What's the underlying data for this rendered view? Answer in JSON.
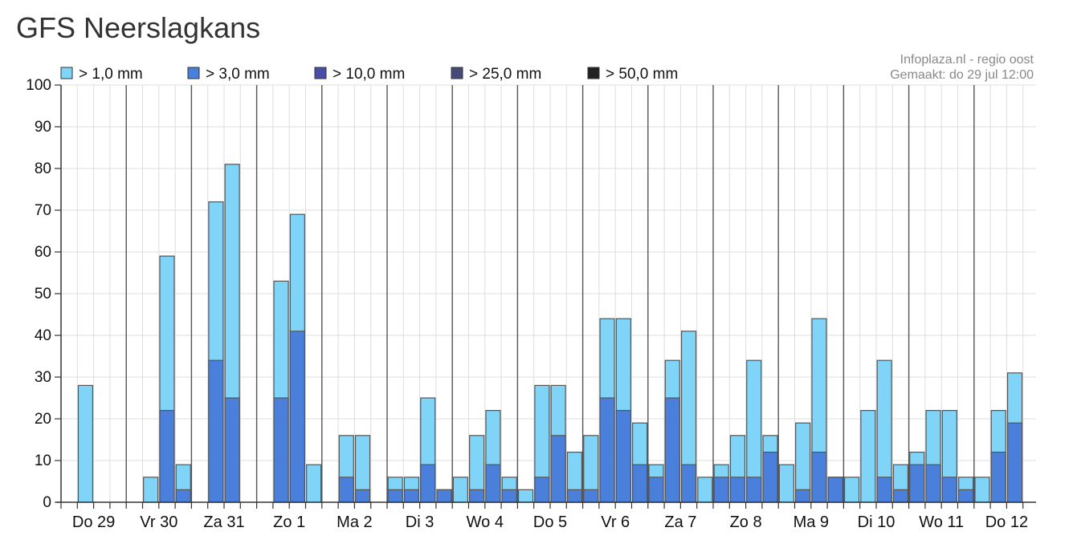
{
  "page": {
    "title": "GFS Neerslagkans"
  },
  "source": {
    "line1": "Infoplaza.nl - regio oost",
    "line2": "Gemaakt: do 29 jul 12:00"
  },
  "chart_data": {
    "type": "bar",
    "stacked": true,
    "ylim": [
      0,
      100
    ],
    "yticks": [
      0,
      10,
      20,
      30,
      40,
      50,
      60,
      70,
      80,
      90,
      100
    ],
    "grid": true,
    "legend_position": "top",
    "slots_per_day": 4,
    "days": [
      "Do 29",
      "Vr 30",
      "Za 31",
      "Zo 1",
      "Ma 2",
      "Di 3",
      "Wo 4",
      "Do 5",
      "Vr 6",
      "Za 7",
      "Zo 8",
      "Ma 9",
      "Di 10",
      "Wo 11",
      "Do 12"
    ],
    "series": [
      {
        "name": "> 1,0 mm",
        "color": "#7fd4f8",
        "values": [
          0,
          28,
          0,
          0,
          0,
          6,
          59,
          9,
          0,
          72,
          81,
          0,
          0,
          53,
          69,
          9,
          0,
          16,
          16,
          0,
          6,
          6,
          25,
          3,
          6,
          16,
          22,
          6,
          3,
          28,
          28,
          12,
          16,
          44,
          44,
          19,
          9,
          34,
          41,
          6,
          9,
          16,
          34,
          16,
          9,
          19,
          44,
          6,
          6,
          22,
          34,
          9,
          12,
          22,
          22,
          6,
          6,
          22,
          31
        ]
      },
      {
        "name": "> 3,0 mm",
        "color": "#4a7fdb",
        "values": [
          0,
          0,
          0,
          0,
          0,
          0,
          22,
          3,
          0,
          34,
          25,
          0,
          0,
          25,
          41,
          0,
          0,
          6,
          3,
          0,
          3,
          3,
          9,
          3,
          0,
          3,
          9,
          3,
          0,
          6,
          16,
          3,
          3,
          25,
          22,
          9,
          6,
          25,
          9,
          0,
          6,
          6,
          6,
          12,
          0,
          3,
          12,
          6,
          0,
          0,
          6,
          3,
          9,
          9,
          6,
          3,
          0,
          12,
          19
        ]
      },
      {
        "name": "> 10,0 mm",
        "color": "#4a4ea8",
        "values": []
      },
      {
        "name": "> 25,0 mm",
        "color": "#454a78",
        "values": []
      },
      {
        "name": "> 50,0 mm",
        "color": "#222222",
        "values": []
      }
    ]
  }
}
